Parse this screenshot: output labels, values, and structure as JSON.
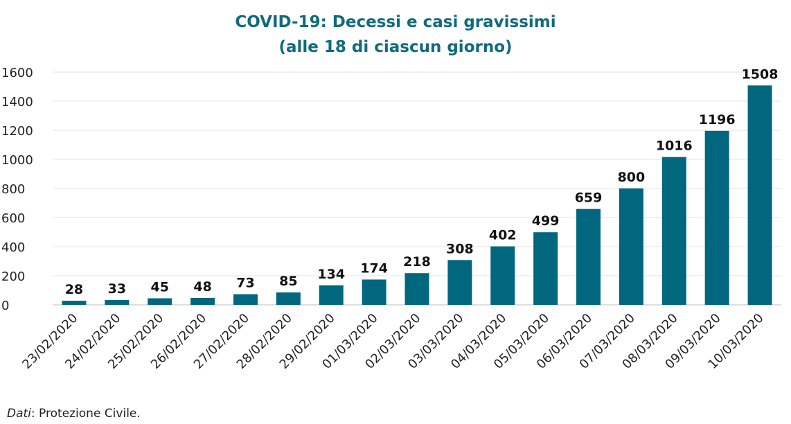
{
  "chart_data": {
    "type": "bar",
    "title": "COVID-19: Decessi e casi gravissimi",
    "subtitle": "(alle 18 di ciascun giorno)",
    "xlabel": "",
    "ylabel": "",
    "ylim": [
      0,
      1600
    ],
    "yticks": [
      "0",
      "200",
      "400",
      "600",
      "800",
      "1000",
      "1200",
      "1400",
      "1600"
    ],
    "categories": [
      "23/02/2020",
      "24/02/2020",
      "25/02/2020",
      "26/02/2020",
      "27/02/2020",
      "28/02/2020",
      "29/02/2020",
      "01/03/2020",
      "02/03/2020",
      "03/03/2020",
      "04/03/2020",
      "05/03/2020",
      "06/03/2020",
      "07/03/2020",
      "08/03/2020",
      "09/03/2020",
      "10/03/2020"
    ],
    "values": [
      28,
      33,
      45,
      48,
      73,
      85,
      134,
      174,
      218,
      308,
      402,
      499,
      659,
      800,
      1016,
      1196,
      1508
    ],
    "data_labels": true,
    "grid": true,
    "legend": "none",
    "bar_color": "#00677e",
    "title_color": "#0f6b7d"
  },
  "source": {
    "label": "Dati",
    "text": ": Protezione Civile."
  }
}
